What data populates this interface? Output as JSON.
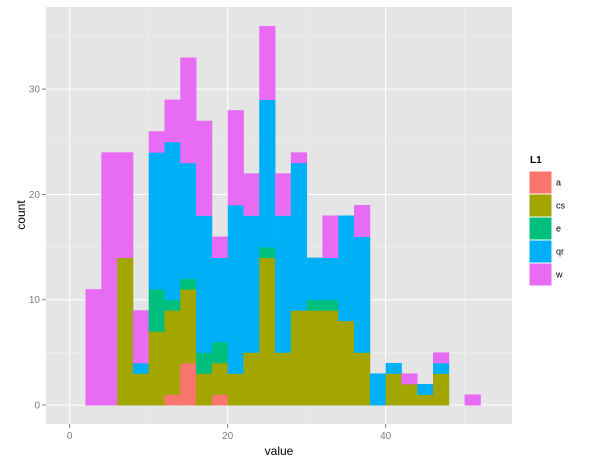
{
  "chart_data": {
    "type": "bar",
    "stacked": true,
    "title": "",
    "xlabel": "value",
    "ylabel": "count",
    "xlim": [
      -3,
      56
    ],
    "ylim": [
      -1.8,
      37.8
    ],
    "x_ticks": [
      0,
      20,
      40
    ],
    "y_ticks": [
      0,
      10,
      20,
      30
    ],
    "grid": true,
    "legend_position": "right",
    "legend_title": "L1",
    "bin_width": 2,
    "x": [
      3,
      5,
      7,
      9,
      11,
      13,
      15,
      17,
      19,
      21,
      23,
      25,
      27,
      29,
      31,
      33,
      35,
      37,
      39,
      41,
      43,
      45,
      47,
      49,
      51
    ],
    "series": [
      {
        "name": "a",
        "color": "#F8766D",
        "values": [
          0,
          0,
          0,
          0,
          0,
          1,
          4,
          0,
          1,
          0,
          0,
          0,
          0,
          0,
          0,
          0,
          0,
          0,
          0,
          0,
          0,
          0,
          0,
          0,
          0
        ]
      },
      {
        "name": "cs",
        "color": "#A3A500",
        "values": [
          0,
          0,
          14,
          3,
          7,
          8,
          7,
          3,
          3,
          3,
          5,
          14,
          5,
          9,
          9,
          9,
          8,
          5,
          0,
          3,
          2,
          1,
          3,
          0,
          0
        ]
      },
      {
        "name": "e",
        "color": "#00BF7D",
        "values": [
          0,
          0,
          0,
          0,
          4,
          1,
          1,
          2,
          2,
          0,
          0,
          1,
          0,
          0,
          1,
          1,
          0,
          0,
          0,
          0,
          0,
          0,
          0,
          0,
          0
        ]
      },
      {
        "name": "qr",
        "color": "#00B0F6",
        "values": [
          0,
          0,
          0,
          1,
          13,
          15,
          11,
          13,
          8,
          16,
          13,
          14,
          13,
          14,
          4,
          4,
          10,
          11,
          3,
          1,
          0,
          1,
          1,
          0,
          0
        ]
      },
      {
        "name": "w",
        "color": "#E76BF3",
        "values": [
          11,
          24,
          10,
          5,
          2,
          4,
          10,
          9,
          2,
          9,
          4,
          7,
          4,
          1,
          0,
          4,
          0,
          3,
          0,
          0,
          1,
          0,
          1,
          0,
          1
        ]
      }
    ]
  }
}
